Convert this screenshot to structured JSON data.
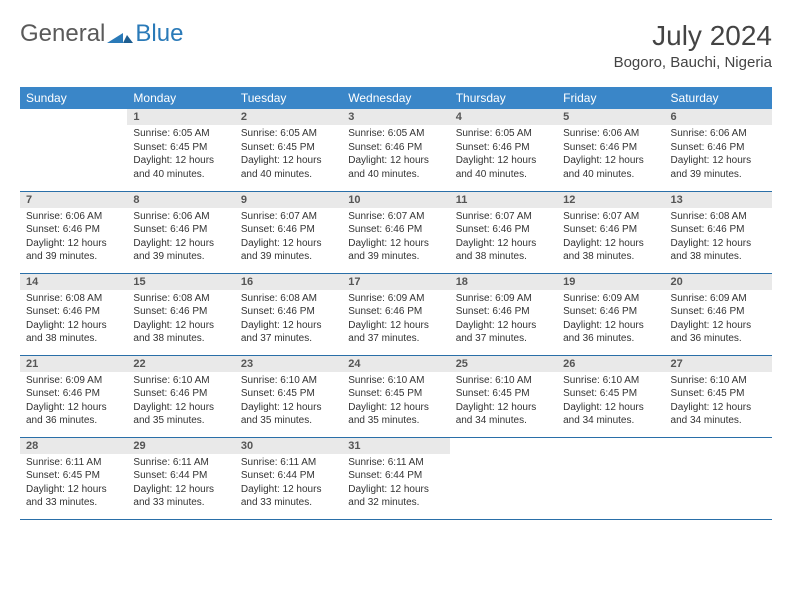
{
  "brand": {
    "part1": "General",
    "part2": "Blue"
  },
  "title": "July 2024",
  "location": "Bogoro, Bauchi, Nigeria",
  "weekdays": [
    "Sunday",
    "Monday",
    "Tuesday",
    "Wednesday",
    "Thursday",
    "Friday",
    "Saturday"
  ],
  "colors": {
    "header_bg": "#3a86c8",
    "header_text": "#ffffff",
    "daynum_bg": "#e9e9e9",
    "border": "#2a6fa8",
    "brand_gray": "#5a5a5a",
    "brand_blue": "#2a7ab8",
    "text": "#333333"
  },
  "start_day_index": 1,
  "days": [
    {
      "n": 1,
      "sunrise": "6:05 AM",
      "sunset": "6:45 PM",
      "daylight": "12 hours and 40 minutes."
    },
    {
      "n": 2,
      "sunrise": "6:05 AM",
      "sunset": "6:45 PM",
      "daylight": "12 hours and 40 minutes."
    },
    {
      "n": 3,
      "sunrise": "6:05 AM",
      "sunset": "6:46 PM",
      "daylight": "12 hours and 40 minutes."
    },
    {
      "n": 4,
      "sunrise": "6:05 AM",
      "sunset": "6:46 PM",
      "daylight": "12 hours and 40 minutes."
    },
    {
      "n": 5,
      "sunrise": "6:06 AM",
      "sunset": "6:46 PM",
      "daylight": "12 hours and 40 minutes."
    },
    {
      "n": 6,
      "sunrise": "6:06 AM",
      "sunset": "6:46 PM",
      "daylight": "12 hours and 39 minutes."
    },
    {
      "n": 7,
      "sunrise": "6:06 AM",
      "sunset": "6:46 PM",
      "daylight": "12 hours and 39 minutes."
    },
    {
      "n": 8,
      "sunrise": "6:06 AM",
      "sunset": "6:46 PM",
      "daylight": "12 hours and 39 minutes."
    },
    {
      "n": 9,
      "sunrise": "6:07 AM",
      "sunset": "6:46 PM",
      "daylight": "12 hours and 39 minutes."
    },
    {
      "n": 10,
      "sunrise": "6:07 AM",
      "sunset": "6:46 PM",
      "daylight": "12 hours and 39 minutes."
    },
    {
      "n": 11,
      "sunrise": "6:07 AM",
      "sunset": "6:46 PM",
      "daylight": "12 hours and 38 minutes."
    },
    {
      "n": 12,
      "sunrise": "6:07 AM",
      "sunset": "6:46 PM",
      "daylight": "12 hours and 38 minutes."
    },
    {
      "n": 13,
      "sunrise": "6:08 AM",
      "sunset": "6:46 PM",
      "daylight": "12 hours and 38 minutes."
    },
    {
      "n": 14,
      "sunrise": "6:08 AM",
      "sunset": "6:46 PM",
      "daylight": "12 hours and 38 minutes."
    },
    {
      "n": 15,
      "sunrise": "6:08 AM",
      "sunset": "6:46 PM",
      "daylight": "12 hours and 38 minutes."
    },
    {
      "n": 16,
      "sunrise": "6:08 AM",
      "sunset": "6:46 PM",
      "daylight": "12 hours and 37 minutes."
    },
    {
      "n": 17,
      "sunrise": "6:09 AM",
      "sunset": "6:46 PM",
      "daylight": "12 hours and 37 minutes."
    },
    {
      "n": 18,
      "sunrise": "6:09 AM",
      "sunset": "6:46 PM",
      "daylight": "12 hours and 37 minutes."
    },
    {
      "n": 19,
      "sunrise": "6:09 AM",
      "sunset": "6:46 PM",
      "daylight": "12 hours and 36 minutes."
    },
    {
      "n": 20,
      "sunrise": "6:09 AM",
      "sunset": "6:46 PM",
      "daylight": "12 hours and 36 minutes."
    },
    {
      "n": 21,
      "sunrise": "6:09 AM",
      "sunset": "6:46 PM",
      "daylight": "12 hours and 36 minutes."
    },
    {
      "n": 22,
      "sunrise": "6:10 AM",
      "sunset": "6:46 PM",
      "daylight": "12 hours and 35 minutes."
    },
    {
      "n": 23,
      "sunrise": "6:10 AM",
      "sunset": "6:45 PM",
      "daylight": "12 hours and 35 minutes."
    },
    {
      "n": 24,
      "sunrise": "6:10 AM",
      "sunset": "6:45 PM",
      "daylight": "12 hours and 35 minutes."
    },
    {
      "n": 25,
      "sunrise": "6:10 AM",
      "sunset": "6:45 PM",
      "daylight": "12 hours and 34 minutes."
    },
    {
      "n": 26,
      "sunrise": "6:10 AM",
      "sunset": "6:45 PM",
      "daylight": "12 hours and 34 minutes."
    },
    {
      "n": 27,
      "sunrise": "6:10 AM",
      "sunset": "6:45 PM",
      "daylight": "12 hours and 34 minutes."
    },
    {
      "n": 28,
      "sunrise": "6:11 AM",
      "sunset": "6:45 PM",
      "daylight": "12 hours and 33 minutes."
    },
    {
      "n": 29,
      "sunrise": "6:11 AM",
      "sunset": "6:44 PM",
      "daylight": "12 hours and 33 minutes."
    },
    {
      "n": 30,
      "sunrise": "6:11 AM",
      "sunset": "6:44 PM",
      "daylight": "12 hours and 33 minutes."
    },
    {
      "n": 31,
      "sunrise": "6:11 AM",
      "sunset": "6:44 PM",
      "daylight": "12 hours and 32 minutes."
    }
  ],
  "labels": {
    "sunrise": "Sunrise:",
    "sunset": "Sunset:",
    "daylight": "Daylight:"
  }
}
